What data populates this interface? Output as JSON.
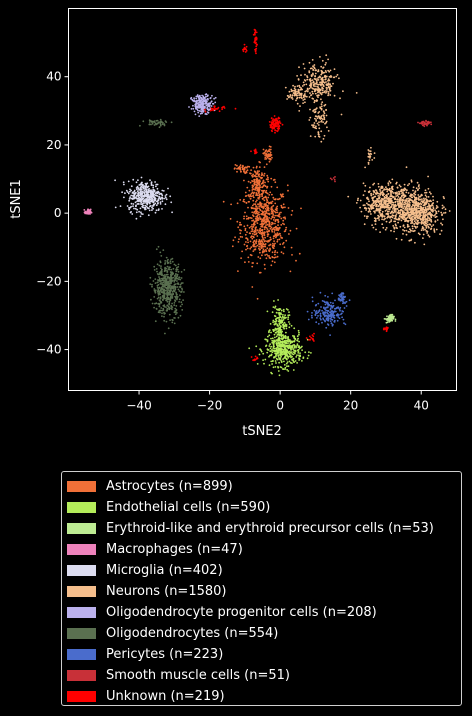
{
  "chart_data": {
    "type": "scatter",
    "xlabel": "tSNE2",
    "ylabel": "tSNE1",
    "xlim": [
      -60,
      50
    ],
    "ylim": [
      -52,
      60
    ],
    "xticks": [
      -40,
      -20,
      0,
      20,
      40
    ],
    "yticks": [
      -40,
      -20,
      0,
      20,
      40
    ],
    "xtick_labels": [
      "−40",
      "−20",
      "0",
      "20",
      "40"
    ],
    "ytick_labels": [
      "−40",
      "−20",
      "0",
      "20",
      "40"
    ],
    "grid": false,
    "legend_position": "below",
    "series": [
      {
        "name": "Astrocytes (n=899)",
        "color": "#f07038",
        "clusters": [
          {
            "cx": -4.5,
            "cy": -3,
            "sx": 3.3,
            "sy": 5.5,
            "n": 620
          },
          {
            "cx": -6.5,
            "cy": 9,
            "sx": 1.3,
            "sy": 2.5,
            "n": 150
          },
          {
            "cx": -11,
            "cy": 13,
            "sx": 1.0,
            "sy": 0.6,
            "n": 40
          },
          {
            "cx": -3.5,
            "cy": 17,
            "sx": 0.6,
            "sy": 1.2,
            "n": 50
          },
          {
            "cx": -4,
            "cy": -10,
            "sx": 4.2,
            "sy": 2.0,
            "n": 39
          }
        ]
      },
      {
        "name": "Endothelial cells (n=590)",
        "color": "#b4ec5a",
        "clusters": [
          {
            "cx": 1,
            "cy": -40,
            "sx": 2.6,
            "sy": 2.4,
            "n": 440
          },
          {
            "cx": 0,
            "cy": -32,
            "sx": 1.2,
            "sy": 2.5,
            "n": 150
          }
        ]
      },
      {
        "name": "Erythroid-like and erythroid precursor cells (n=53)",
        "color": "#bdeb92",
        "clusters": [
          {
            "cx": 31,
            "cy": -31,
            "sx": 0.6,
            "sy": 0.6,
            "n": 53
          }
        ]
      },
      {
        "name": "Macrophages (n=47)",
        "color": "#ee82bb",
        "clusters": [
          {
            "cx": -54.5,
            "cy": 0.3,
            "sx": 0.4,
            "sy": 0.4,
            "n": 47
          }
        ]
      },
      {
        "name": "Microglia (n=402)",
        "color": "#dcdcf0",
        "clusters": [
          {
            "cx": -38,
            "cy": 5,
            "sx": 2.6,
            "sy": 2.2,
            "n": 402
          }
        ]
      },
      {
        "name": "Neurons (n=1580)",
        "color": "#f5be8c",
        "clusters": [
          {
            "cx": 34,
            "cy": 2,
            "sx": 5.0,
            "sy": 3.2,
            "n": 700
          },
          {
            "cx": 40,
            "cy": -1,
            "sx": 2.5,
            "sy": 3.0,
            "n": 300
          },
          {
            "cx": 29,
            "cy": 4,
            "sx": 2.2,
            "sy": 1.8,
            "n": 150
          },
          {
            "cx": 11,
            "cy": 38,
            "sx": 2.5,
            "sy": 3.0,
            "n": 250
          },
          {
            "cx": 5,
            "cy": 35,
            "sx": 1.5,
            "sy": 1.5,
            "n": 80
          },
          {
            "cx": 11,
            "cy": 27,
            "sx": 1.2,
            "sy": 2.5,
            "n": 80
          },
          {
            "cx": 25.5,
            "cy": 17,
            "sx": 0.5,
            "sy": 1.2,
            "n": 20
          }
        ]
      },
      {
        "name": "Oligodendrocyte progenitor cells (n=208)",
        "color": "#bbb1ed",
        "clusters": [
          {
            "cx": -22,
            "cy": 32,
            "sx": 1.5,
            "sy": 1.3,
            "n": 208
          }
        ]
      },
      {
        "name": "Oligodendrocytes (n=554)",
        "color": "#5a7050",
        "clusters": [
          {
            "cx": -32,
            "cy": -22,
            "sx": 2.0,
            "sy": 4.0,
            "n": 510
          },
          {
            "cx": -35,
            "cy": 26.5,
            "sx": 2.0,
            "sy": 0.5,
            "n": 44
          }
        ]
      },
      {
        "name": "Pericytes (n=223)",
        "color": "#4a6ccc",
        "clusters": [
          {
            "cx": 14,
            "cy": -29,
            "sx": 2.3,
            "sy": 2.0,
            "n": 180
          },
          {
            "cx": 17.5,
            "cy": -25,
            "sx": 0.6,
            "sy": 1.0,
            "n": 43
          }
        ]
      },
      {
        "name": "Smooth muscle cells (n=51)",
        "color": "#c83038",
        "clusters": [
          {
            "cx": 41.5,
            "cy": 26.3,
            "sx": 0.8,
            "sy": 0.3,
            "n": 45
          },
          {
            "cx": 15,
            "cy": 10,
            "sx": 0.3,
            "sy": 0.3,
            "n": 6
          }
        ]
      },
      {
        "name": "Unknown (n=219)",
        "color": "#ff0000",
        "clusters": [
          {
            "cx": -1.5,
            "cy": 26,
            "sx": 0.8,
            "sy": 1.0,
            "n": 100
          },
          {
            "cx": -18,
            "cy": 30.5,
            "sx": 1.5,
            "sy": 0.4,
            "n": 25
          },
          {
            "cx": -7,
            "cy": 51,
            "sx": 0.2,
            "sy": 2.0,
            "n": 30
          },
          {
            "cx": -10,
            "cy": 48,
            "sx": 0.4,
            "sy": 0.5,
            "n": 15
          },
          {
            "cx": 30,
            "cy": -34,
            "sx": 0.5,
            "sy": 0.3,
            "n": 15
          },
          {
            "cx": -7,
            "cy": 18,
            "sx": 0.5,
            "sy": 0.3,
            "n": 10
          },
          {
            "cx": 9,
            "cy": -37,
            "sx": 0.5,
            "sy": 0.5,
            "n": 14
          },
          {
            "cx": -7,
            "cy": -43,
            "sx": 0.5,
            "sy": 0.5,
            "n": 10
          }
        ]
      }
    ]
  }
}
